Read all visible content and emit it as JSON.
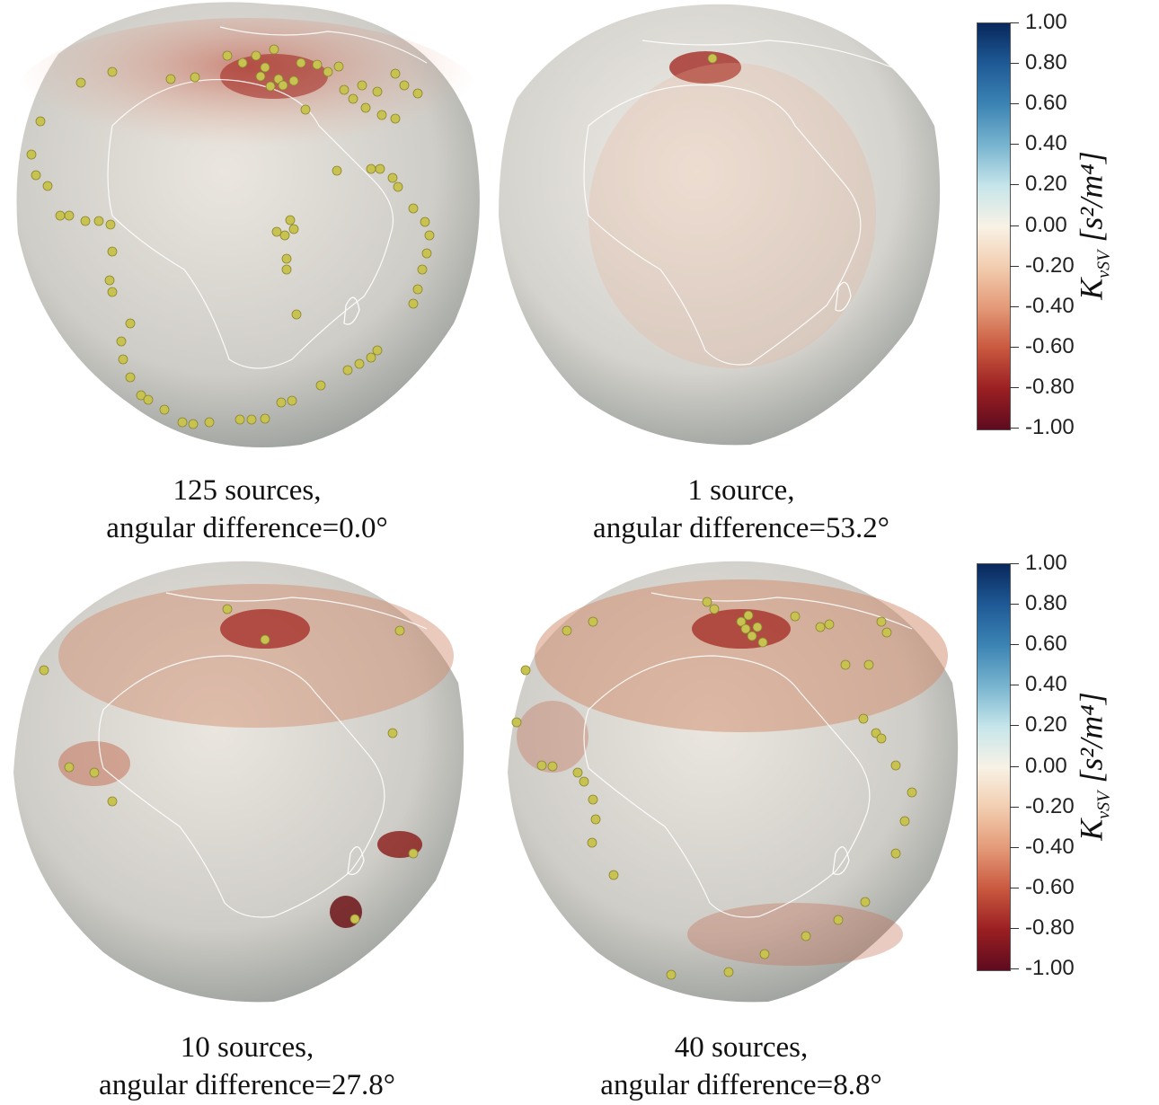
{
  "panels": [
    {
      "caption_line1": "125 sources,",
      "caption_line2": "angular difference=0.0°",
      "source_count": 125,
      "angular_difference_deg": 0.0
    },
    {
      "caption_line1": "1 source,",
      "caption_line2": "angular difference=53.2°",
      "source_count": 1,
      "angular_difference_deg": 53.2
    },
    {
      "caption_line1": "10 sources,",
      "caption_line2": "angular difference=27.8°",
      "source_count": 10,
      "angular_difference_deg": 27.8
    },
    {
      "caption_line1": "40 sources,",
      "caption_line2": "angular difference=8.8°",
      "source_count": 40,
      "angular_difference_deg": 8.8
    }
  ],
  "colorbar": {
    "title_main": "K",
    "title_sub": "vSV",
    "title_units": "[s²/m⁴]",
    "ticks": [
      "1.00",
      "0.80",
      "0.60",
      "0.40",
      "0.20",
      "0.00",
      "-0.20",
      "-0.40",
      "-0.60",
      "-0.80",
      "-1.00"
    ],
    "range": [
      -1.0,
      1.0
    ],
    "colormap": [
      "#08285c",
      "#3c84b4",
      "#c6e5ea",
      "#f8f2e6",
      "#e39a78",
      "#9a1f22",
      "#5e0b1f"
    ]
  },
  "colors": {
    "source_marker": "#c8c350",
    "coastline": "#ffffff",
    "globe_base": "#d8d6d0"
  }
}
